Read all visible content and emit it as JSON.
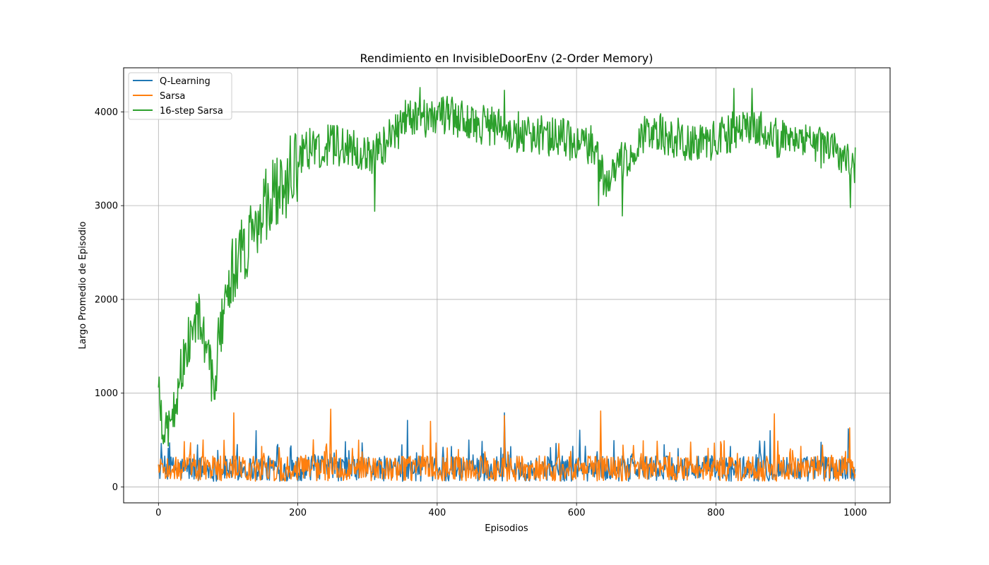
{
  "chart_data": {
    "type": "line",
    "title": "Rendimiento en InvisibleDoorEnv (2-Order Memory)",
    "xlabel": "Episodios",
    "ylabel": "Largo Promedio de Episodio",
    "xlim": [
      -50,
      1050
    ],
    "ylim": [
      -170,
      4470
    ],
    "xticks": [
      0,
      200,
      400,
      600,
      800,
      1000
    ],
    "yticks": [
      0,
      1000,
      2000,
      3000,
      4000
    ],
    "grid": true,
    "legend_position": "top-left",
    "colors": {
      "q_learning": "#1f77b4",
      "sarsa": "#ff7f0e",
      "nstep": "#2ca02c",
      "grid": "#b0b0b0"
    },
    "series": [
      {
        "name": "Q-Learning",
        "color": "#1f77b4",
        "x_start": 0,
        "x_end": 1000,
        "n_points": 1000,
        "typical_range": [
          60,
          330
        ],
        "keypoints": [
          {
            "x": 0,
            "y": 220
          },
          {
            "x": 140,
            "y": 600
          },
          {
            "x": 357,
            "y": 710
          },
          {
            "x": 496,
            "y": 790
          },
          {
            "x": 605,
            "y": 605
          },
          {
            "x": 878,
            "y": 600
          },
          {
            "x": 990,
            "y": 620
          }
        ]
      },
      {
        "name": "Sarsa",
        "color": "#ff7f0e",
        "x_start": 0,
        "x_end": 1000,
        "n_points": 1000,
        "typical_range": [
          60,
          330
        ],
        "keypoints": [
          {
            "x": 0,
            "y": 240
          },
          {
            "x": 108,
            "y": 790
          },
          {
            "x": 247,
            "y": 830
          },
          {
            "x": 390,
            "y": 700
          },
          {
            "x": 496,
            "y": 760
          },
          {
            "x": 635,
            "y": 810
          },
          {
            "x": 884,
            "y": 780
          },
          {
            "x": 992,
            "y": 630
          }
        ]
      },
      {
        "name": "16-step Sarsa",
        "color": "#2ca02c",
        "x_start": 0,
        "x_end": 1000,
        "n_points": 1000,
        "keypoints": [
          {
            "x": 0,
            "y": 1060
          },
          {
            "x": 8,
            "y": 500
          },
          {
            "x": 20,
            "y": 800
          },
          {
            "x": 40,
            "y": 1500
          },
          {
            "x": 60,
            "y": 1800
          },
          {
            "x": 78,
            "y": 1050
          },
          {
            "x": 100,
            "y": 2200
          },
          {
            "x": 120,
            "y": 2500
          },
          {
            "x": 150,
            "y": 3000
          },
          {
            "x": 180,
            "y": 3250
          },
          {
            "x": 210,
            "y": 3600
          },
          {
            "x": 250,
            "y": 3650
          },
          {
            "x": 310,
            "y": 3550
          },
          {
            "x": 360,
            "y": 3950
          },
          {
            "x": 420,
            "y": 3950
          },
          {
            "x": 500,
            "y": 3800
          },
          {
            "x": 560,
            "y": 3750
          },
          {
            "x": 620,
            "y": 3650
          },
          {
            "x": 640,
            "y": 3300
          },
          {
            "x": 680,
            "y": 3550
          },
          {
            "x": 700,
            "y": 3800
          },
          {
            "x": 780,
            "y": 3650
          },
          {
            "x": 840,
            "y": 3850
          },
          {
            "x": 900,
            "y": 3700
          },
          {
            "x": 960,
            "y": 3600
          },
          {
            "x": 1000,
            "y": 3450
          }
        ],
        "extremes": [
          {
            "x": 310,
            "y": 2940
          },
          {
            "x": 666,
            "y": 2890
          },
          {
            "x": 632,
            "y": 3000
          },
          {
            "x": 993,
            "y": 2980
          },
          {
            "x": 375,
            "y": 4260
          },
          {
            "x": 826,
            "y": 4250
          },
          {
            "x": 852,
            "y": 4250
          },
          {
            "x": 496,
            "y": 4230
          }
        ]
      }
    ]
  }
}
